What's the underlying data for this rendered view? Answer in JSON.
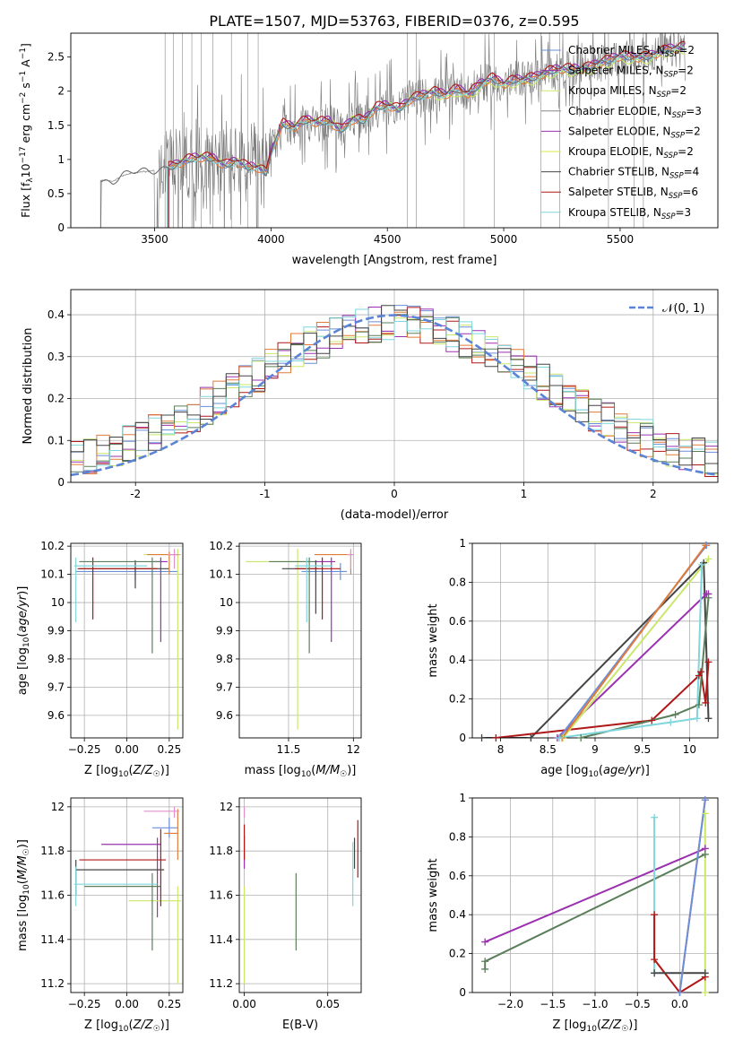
{
  "figure": {
    "title": "PLATE=1507, MJD=53763, FIBERID=0376, z=0.595"
  },
  "colors": {
    "Chabrier MILES": "#6a8fdb",
    "Salpeter MILES": "#9b30b0",
    "Kroupa MILES": "#c9e86a",
    "Chabrier ELODIE": "#888888",
    "Salpeter ELODIE": "#9b30b0",
    "Kroupa ELODIE": "#d8e84a",
    "Chabrier STELIB": "#444444",
    "Salpeter STELIB": "#b01818",
    "Kroupa STELIB": "#7fd6dc",
    "orange": "#e07b39",
    "green": "#5a7f5a",
    "pink": "#e090c8",
    "normal": "#5b84d6",
    "grid": "#b0b0b0"
  },
  "chart_data": [
    {
      "id": "spectrum",
      "type": "line",
      "xlabel": "wavelength [Angstrom, rest frame]",
      "ylabel": "Flux [f_λ 10^-17 erg cm^-2 s^-1 A^-1]",
      "xlim": [
        3140,
        5920
      ],
      "ylim": [
        0,
        2.85
      ],
      "xticks": [
        3500,
        4000,
        4500,
        5000,
        5500
      ],
      "yticks": [
        0.0,
        0.5,
        1.0,
        1.5,
        2.0,
        2.5
      ],
      "legend": "top-right",
      "legend_entries": [
        {
          "name": "Chabrier MILES, N_SSP=2",
          "color": "#6a8fdb"
        },
        {
          "name": "Salpeter MILES, N_SSP=2",
          "color": "#9b30b0"
        },
        {
          "name": "Kroupa MILES, N_SSP=2",
          "color": "#c9e86a"
        },
        {
          "name": "Chabrier ELODIE, N_SSP=3",
          "color": "#888888"
        },
        {
          "name": "Salpeter ELODIE, N_SSP=2",
          "color": "#9b30b0"
        },
        {
          "name": "Kroupa ELODIE, N_SSP=2",
          "color": "#d8e84a"
        },
        {
          "name": "Chabrier STELIB, N_SSP=4",
          "color": "#444444"
        },
        {
          "name": "Salpeter STELIB, N_SSP=6",
          "color": "#b01818"
        },
        {
          "name": "Kroupa STELIB, N_SSP=3",
          "color": "#7fd6dc"
        }
      ],
      "model_curve_knots": {
        "x": [
          3270,
          3320,
          3360,
          3400,
          3450,
          3500,
          3550,
          3600,
          3650,
          3700,
          3750,
          3800,
          3850,
          3900,
          3950,
          3980,
          4000,
          4050,
          4100,
          4150,
          4200,
          4250,
          4300,
          4350,
          4400,
          4450,
          4500,
          4550,
          4600,
          4650,
          4700,
          4750,
          4800,
          4850,
          4900,
          4950,
          5000,
          5050,
          5100,
          5150,
          5200,
          5250,
          5300,
          5350,
          5400,
          5450,
          5500,
          5550,
          5600,
          5650,
          5700,
          5750,
          5800
        ],
        "y": [
          0.7,
          0.68,
          0.76,
          0.8,
          0.82,
          0.84,
          0.9,
          0.93,
          0.97,
          1.0,
          1.02,
          0.94,
          0.98,
          0.86,
          0.84,
          0.78,
          1.1,
          1.55,
          1.48,
          1.55,
          1.5,
          1.56,
          1.45,
          1.6,
          1.55,
          1.72,
          1.78,
          1.76,
          1.9,
          1.92,
          1.95,
          1.93,
          2.05,
          1.98,
          2.1,
          2.15,
          2.08,
          2.18,
          2.2,
          2.22,
          2.26,
          2.3,
          2.33,
          2.36,
          2.4,
          2.42,
          2.48,
          2.5,
          2.52,
          2.55,
          2.58,
          2.6,
          2.65
        ]
      }
    },
    {
      "id": "residuals",
      "type": "line",
      "xlabel": "(data-model)/error",
      "ylabel": "Normed distribution",
      "xlim": [
        -2.5,
        2.5
      ],
      "ylim": [
        0,
        0.46
      ],
      "xticks": [
        -2,
        -1,
        0,
        1,
        2
      ],
      "yticks": [
        0.0,
        0.1,
        0.2,
        0.3,
        0.4
      ],
      "legend": "top-right",
      "legend_entries": [
        {
          "name": "𝒩(0, 1)",
          "color": "#5b84d6",
          "dash": true
        }
      ]
    },
    {
      "id": "age-vs-Z",
      "type": "scatter",
      "xlabel": "Z [log10(Z/Z☉)]",
      "ylabel": "age  [log10(age/yr)]",
      "xlim": [
        -0.33,
        0.33
      ],
      "ylim": [
        9.52,
        10.21
      ],
      "xticks": [
        -0.25,
        0.0,
        0.25
      ],
      "xticklabels": [
        "−0.25",
        "0.00",
        "0.25"
      ],
      "yticks": [
        9.6,
        9.7,
        9.8,
        9.9,
        10.0,
        10.1,
        10.2
      ],
      "items": [
        {
          "c": "#6a8fdb",
          "x": 0.05,
          "y": 10.11,
          "xe": [
            -0.3,
            0.3
          ],
          "ye": [
            10.08,
            10.14
          ]
        },
        {
          "c": "#9b30b0",
          "x": 0.2,
          "y": 10.145,
          "xe": [
            0.16,
            0.24
          ],
          "ye": [
            9.86,
            10.16
          ]
        },
        {
          "c": "#c9e86a",
          "x": 0.3,
          "y": 10.17,
          "xe": [
            0.1,
            0.32
          ],
          "ye": [
            9.55,
            10.19
          ]
        },
        {
          "c": "#444444",
          "x": 0.05,
          "y": 10.12,
          "xe": [
            -0.28,
            0.25
          ],
          "ye": [
            10.05,
            10.15
          ]
        },
        {
          "c": "#b01818",
          "x": -0.2,
          "y": 10.12,
          "xe": [
            -0.29,
            0.18
          ],
          "ye": [
            9.94,
            10.16
          ]
        },
        {
          "c": "#e07b39",
          "x": 0.25,
          "y": 10.17,
          "xe": [
            0.12,
            0.31
          ],
          "ye": [
            10.1,
            10.18
          ]
        },
        {
          "c": "#5a7f5a",
          "x": 0.15,
          "y": 10.145,
          "xe": [
            -0.28,
            0.2
          ],
          "ye": [
            9.82,
            10.16
          ]
        },
        {
          "c": "#7fd6dc",
          "x": -0.3,
          "y": 10.13,
          "xe": [
            -0.31,
            0.12
          ],
          "ye": [
            9.93,
            10.16
          ]
        },
        {
          "c": "#e090c8",
          "x": 0.28,
          "y": 10.17,
          "xe": [
            0.24,
            0.31
          ],
          "ye": [
            10.12,
            10.19
          ]
        }
      ]
    },
    {
      "id": "age-vs-mass",
      "type": "scatter",
      "xlabel": "mass [log10(M/M☉)]",
      "ylabel": "",
      "xlim": [
        11.12,
        12.06
      ],
      "ylim": [
        9.52,
        10.21
      ],
      "xticks": [
        11.5,
        12.0
      ],
      "yticks": [
        9.6,
        9.7,
        9.8,
        9.9,
        10.0,
        10.1,
        10.2
      ],
      "items": [
        {
          "c": "#6a8fdb",
          "x": 11.9,
          "y": 10.11,
          "xe": [
            11.6,
            11.95
          ],
          "ye": [
            10.08,
            10.14
          ]
        },
        {
          "c": "#9b30b0",
          "x": 11.83,
          "y": 10.145,
          "xe": [
            11.7,
            11.86
          ],
          "ye": [
            9.86,
            10.16
          ]
        },
        {
          "c": "#c9e86a",
          "x": 11.57,
          "y": 10.145,
          "xe": [
            11.17,
            11.64
          ],
          "ye": [
            9.55,
            10.19
          ]
        },
        {
          "c": "#444444",
          "x": 11.71,
          "y": 10.12,
          "xe": [
            11.45,
            11.73
          ],
          "ye": [
            9.96,
            10.15
          ]
        },
        {
          "c": "#b01818",
          "x": 11.76,
          "y": 10.12,
          "xe": [
            11.55,
            11.9
          ],
          "ye": [
            9.94,
            10.16
          ]
        },
        {
          "c": "#e07b39",
          "x": 11.98,
          "y": 10.17,
          "xe": [
            11.7,
            12.0
          ],
          "ye": [
            10.1,
            10.18
          ]
        },
        {
          "c": "#5a7f5a",
          "x": 11.66,
          "y": 10.145,
          "xe": [
            11.35,
            11.7
          ],
          "ye": [
            9.82,
            10.16
          ]
        },
        {
          "c": "#7fd6dc",
          "x": 11.64,
          "y": 10.13,
          "xe": [
            11.55,
            11.84
          ],
          "ye": [
            9.93,
            10.16
          ]
        },
        {
          "c": "#e090c8",
          "x": 11.98,
          "y": 10.17,
          "xe": [
            11.95,
            12.0
          ],
          "ye": [
            10.12,
            10.19
          ]
        }
      ]
    },
    {
      "id": "weight-vs-age",
      "type": "line",
      "xlabel": "age  [log10(age/yr)]",
      "ylabel": "mass weight",
      "xlim": [
        7.7,
        10.3
      ],
      "ylim": [
        0,
        1.0
      ],
      "xticks": [
        8.0,
        8.5,
        9.0,
        9.5,
        10.0
      ],
      "yticks": [
        0.0,
        0.2,
        0.4,
        0.6,
        0.8,
        1.0
      ],
      "series": [
        {
          "c": "#444444",
          "x": [
            7.8,
            8.32,
            10.15,
            10.2
          ],
          "y": [
            0.0,
            0.0,
            0.9,
            0.1
          ]
        },
        {
          "c": "#b01818",
          "x": [
            7.95,
            9.6,
            10.1,
            10.12,
            10.17,
            10.2
          ],
          "y": [
            0.0,
            0.09,
            0.32,
            0.34,
            0.18,
            0.39
          ]
        },
        {
          "c": "#9b30b0",
          "x": [
            8.6,
            10.18,
            10.2
          ],
          "y": [
            0.0,
            0.74,
            0.74
          ]
        },
        {
          "c": "#6a8fdb",
          "x": [
            8.62,
            10.18
          ],
          "y": [
            0.0,
            0.99
          ]
        },
        {
          "c": "#c9e86a",
          "x": [
            8.66,
            10.2
          ],
          "y": [
            0.0,
            0.92
          ]
        },
        {
          "c": "#e07b39",
          "x": [
            8.65,
            10.17
          ],
          "y": [
            0.0,
            0.99
          ]
        },
        {
          "c": "#5a7f5a",
          "x": [
            8.85,
            9.85,
            10.1,
            10.2
          ],
          "y": [
            0.0,
            0.12,
            0.17,
            0.72
          ]
        },
        {
          "c": "#7fd6dc",
          "x": [
            8.62,
            9.8,
            10.08,
            10.13
          ],
          "y": [
            0.0,
            0.08,
            0.1,
            0.89
          ]
        }
      ]
    },
    {
      "id": "mass-vs-Z",
      "type": "scatter",
      "xlabel": "Z [log10(Z/Z☉)]",
      "ylabel": "mass [log10(M/M☉)]",
      "xlim": [
        -0.33,
        0.33
      ],
      "ylim": [
        11.16,
        12.04
      ],
      "xticks": [
        -0.25,
        0.0,
        0.25
      ],
      "xticklabels": [
        "−0.25",
        "0.00",
        "0.25"
      ],
      "yticks": [
        11.2,
        11.4,
        11.6,
        11.8,
        12.0
      ],
      "items": [
        {
          "c": "#6a8fdb",
          "x": 0.25,
          "y": 11.905,
          "xe": [
            0.15,
            0.3
          ],
          "ye": [
            11.86,
            11.95
          ]
        },
        {
          "c": "#9b30b0",
          "x": 0.18,
          "y": 11.83,
          "xe": [
            -0.15,
            0.2
          ],
          "ye": [
            11.5,
            11.86
          ]
        },
        {
          "c": "#c9e86a",
          "x": 0.3,
          "y": 11.575,
          "xe": [
            0.01,
            0.32
          ],
          "ye": [
            11.2,
            11.64
          ]
        },
        {
          "c": "#444444",
          "x": -0.3,
          "y": 11.715,
          "xe": [
            -0.3,
            0.22
          ],
          "ye": [
            11.6,
            11.76
          ]
        },
        {
          "c": "#b01818",
          "x": 0.2,
          "y": 11.76,
          "xe": [
            -0.28,
            0.23
          ],
          "ye": [
            11.55,
            11.9
          ]
        },
        {
          "c": "#e07b39",
          "x": 0.3,
          "y": 11.88,
          "xe": [
            0.22,
            0.3
          ],
          "ye": [
            11.76,
            11.99
          ]
        },
        {
          "c": "#5a7f5a",
          "x": 0.15,
          "y": 11.64,
          "xe": [
            -0.25,
            0.2
          ],
          "ye": [
            11.35,
            11.7
          ]
        },
        {
          "c": "#7fd6dc",
          "x": -0.3,
          "y": 11.65,
          "xe": [
            -0.31,
            0.18
          ],
          "ye": [
            11.55,
            11.73
          ]
        },
        {
          "c": "#e090c8",
          "x": 0.28,
          "y": 11.98,
          "xe": [
            0.1,
            0.31
          ],
          "ye": [
            11.95,
            12.0
          ]
        }
      ]
    },
    {
      "id": "mass-vs-EBV",
      "type": "scatter",
      "xlabel": "E(B-V)",
      "ylabel": "",
      "xlim": [
        -0.003,
        0.07
      ],
      "ylim": [
        11.16,
        12.04
      ],
      "xticks": [
        0.0,
        0.05
      ],
      "xticklabels": [
        "0.00",
        "0.05"
      ],
      "yticks": [
        11.2,
        11.4,
        11.6,
        11.8,
        12.0
      ],
      "items": [
        {
          "c": "#9b30b0",
          "x": 0.0,
          "y": 11.83,
          "ye": [
            11.72,
            11.87
          ]
        },
        {
          "c": "#c9e86a",
          "x": 0.0,
          "y": 11.575,
          "ye": [
            11.2,
            11.64
          ]
        },
        {
          "c": "#b01818",
          "x": 0.0,
          "y": 11.83,
          "ye": [
            11.76,
            11.92
          ]
        },
        {
          "c": "#e090c8",
          "x": 0.0,
          "y": 11.98,
          "ye": [
            11.95,
            12.0
          ]
        },
        {
          "c": "#5a7f5a",
          "x": 0.031,
          "y": 11.52,
          "ye": [
            11.35,
            11.7
          ]
        },
        {
          "c": "#7fd6dc",
          "x": 0.065,
          "y": 11.7,
          "ye": [
            11.55,
            11.84
          ]
        },
        {
          "c": "#444444",
          "x": 0.066,
          "y": 11.79,
          "ye": [
            11.72,
            11.86
          ]
        },
        {
          "c": "#b01818",
          "x": 0.068,
          "y": 11.81,
          "ye": [
            11.68,
            11.94
          ]
        }
      ]
    },
    {
      "id": "weight-vs-Z",
      "type": "line",
      "xlabel": "Z [log10(Z/Z☉)]",
      "ylabel": "mass weight",
      "xlim": [
        -2.45,
        0.45
      ],
      "ylim": [
        0,
        1.0
      ],
      "xticks": [
        -2.0,
        -1.5,
        -1.0,
        -0.5,
        0.0
      ],
      "xticklabels": [
        "−2.0",
        "−1.5",
        "−1.0",
        "−0.5",
        "0.0"
      ],
      "yticks": [
        0.0,
        0.2,
        0.4,
        0.6,
        0.8,
        1.0
      ],
      "series": [
        {
          "c": "#9b30b0",
          "x": [
            -2.3,
            0.3
          ],
          "y": [
            0.26,
            0.74
          ]
        },
        {
          "c": "#5a7f5a",
          "x": [
            -2.3,
            -2.3,
            0.3
          ],
          "y": [
            0.12,
            0.16,
            0.71
          ]
        },
        {
          "c": "#7fd6dc",
          "x": [
            -0.3,
            -0.3,
            -0.3
          ],
          "y": [
            0.1,
            0.9,
            0.1
          ]
        },
        {
          "c": "#b01818",
          "x": [
            -0.3,
            -0.3,
            0.0,
            0.3
          ],
          "y": [
            0.4,
            0.17,
            0.0,
            0.08
          ]
        },
        {
          "c": "#444444",
          "x": [
            -0.3,
            0.3
          ],
          "y": [
            0.1,
            0.1
          ]
        },
        {
          "c": "#e07b39",
          "x": [
            0.0,
            0.3
          ],
          "y": [
            0.0,
            0.99
          ]
        },
        {
          "c": "#6a8fdb",
          "x": [
            0.0,
            0.3
          ],
          "y": [
            0.0,
            0.99
          ]
        },
        {
          "c": "#c9e86a",
          "x": [
            0.3,
            0.3
          ],
          "y": [
            0.0,
            0.92
          ]
        }
      ]
    }
  ]
}
